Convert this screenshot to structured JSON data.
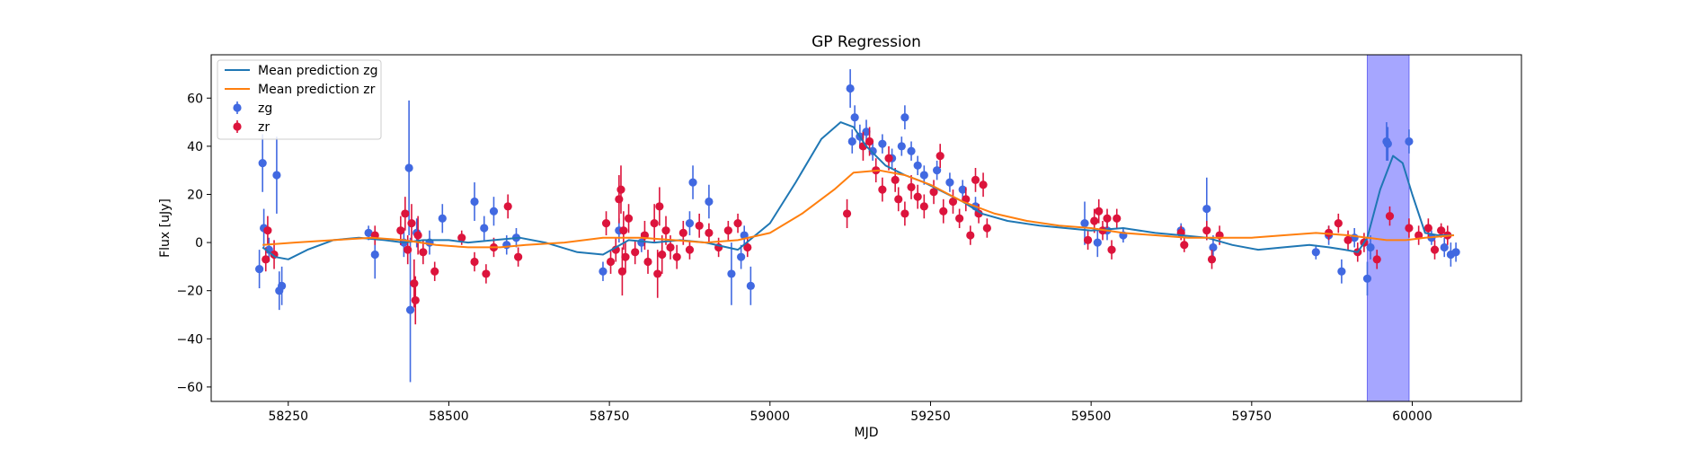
{
  "chart_data": {
    "type": "scatter",
    "title": "GP Regression",
    "xlabel": "MJD",
    "ylabel": "Flux [uJy]",
    "xlim": [
      58130,
      60170
    ],
    "ylim": [
      -66,
      78
    ],
    "xticks": [
      58250,
      58500,
      58750,
      59000,
      59250,
      59500,
      59750,
      60000
    ],
    "yticks": [
      -60,
      -40,
      -20,
      0,
      20,
      40,
      60
    ],
    "grid": false,
    "legend_position": "top-left",
    "legend": [
      "Mean prediction zg",
      "Mean prediction zr",
      "zg",
      "zr"
    ],
    "highlight_span": {
      "x_start": 59930,
      "x_end": 59995,
      "color": "#a6a6ff"
    },
    "series": [
      {
        "name": "Mean prediction zg",
        "kind": "line",
        "color": "#1f77b4",
        "x": [
          58210,
          58230,
          58250,
          58280,
          58320,
          58360,
          58400,
          58430,
          58460,
          58500,
          58530,
          58570,
          58610,
          58650,
          58700,
          58740,
          58780,
          58820,
          58860,
          58900,
          58950,
          59000,
          59040,
          59080,
          59110,
          59130,
          59150,
          59180,
          59210,
          59240,
          59270,
          59300,
          59330,
          59370,
          59420,
          59460,
          59500,
          59550,
          59600,
          59640,
          59680,
          59720,
          59760,
          59800,
          59840,
          59870,
          59895,
          59915,
          59930,
          59950,
          59970,
          59985,
          60000,
          60020,
          60040,
          60065
        ],
        "y": [
          -2,
          -6,
          -7,
          -3,
          1,
          2,
          1,
          0,
          1,
          1,
          0,
          1,
          2,
          0,
          -4,
          -5,
          1,
          0,
          1,
          0,
          -3,
          8,
          25,
          43,
          50,
          48,
          40,
          32,
          28,
          25,
          21,
          17,
          12,
          9,
          7,
          6,
          5,
          6,
          4,
          3,
          2,
          -1,
          -3,
          -2,
          -1,
          -2,
          -3,
          -4,
          2,
          22,
          36,
          33,
          20,
          4,
          3,
          3
        ]
      },
      {
        "name": "Mean prediction zr",
        "kind": "line",
        "color": "#ff7f0e",
        "x": [
          58210,
          58260,
          58320,
          58380,
          58430,
          58480,
          58530,
          58580,
          58620,
          58680,
          58740,
          58800,
          58850,
          58900,
          58950,
          59000,
          59050,
          59100,
          59130,
          59170,
          59210,
          59250,
          59300,
          59350,
          59400,
          59450,
          59500,
          59550,
          59600,
          59650,
          59700,
          59750,
          59800,
          59850,
          59900,
          59930,
          59960,
          59990,
          60020,
          60065
        ],
        "y": [
          -1,
          0,
          1,
          2,
          1,
          -1,
          -2,
          -2,
          -1,
          0,
          2,
          2,
          1,
          0,
          1,
          4,
          12,
          22,
          29,
          30,
          28,
          24,
          17,
          12,
          9,
          7,
          6,
          4,
          3,
          2,
          2,
          2,
          3,
          4,
          3,
          2,
          1,
          1,
          2,
          3
        ]
      },
      {
        "name": "zg",
        "kind": "errorbar",
        "color": "#4169e1",
        "points": [
          {
            "x": 58205,
            "y": -11,
            "e": 8
          },
          {
            "x": 58210,
            "y": 33,
            "e": 12
          },
          {
            "x": 58212,
            "y": 6,
            "e": 8
          },
          {
            "x": 58220,
            "y": -3,
            "e": 5
          },
          {
            "x": 58232,
            "y": 28,
            "e": 16
          },
          {
            "x": 58236,
            "y": -20,
            "e": 8
          },
          {
            "x": 58240,
            "y": -18,
            "e": 8
          },
          {
            "x": 58375,
            "y": 4,
            "e": 3
          },
          {
            "x": 58385,
            "y": -5,
            "e": 10
          },
          {
            "x": 58430,
            "y": 0,
            "e": 6
          },
          {
            "x": 58438,
            "y": 31,
            "e": 28
          },
          {
            "x": 58440,
            "y": -28,
            "e": 30
          },
          {
            "x": 58450,
            "y": 4,
            "e": 6
          },
          {
            "x": 58470,
            "y": 0,
            "e": 5
          },
          {
            "x": 58490,
            "y": 10,
            "e": 6
          },
          {
            "x": 58540,
            "y": 17,
            "e": 8
          },
          {
            "x": 58555,
            "y": 6,
            "e": 5
          },
          {
            "x": 58570,
            "y": 13,
            "e": 6
          },
          {
            "x": 58590,
            "y": -1,
            "e": 4
          },
          {
            "x": 58605,
            "y": 2,
            "e": 4
          },
          {
            "x": 58740,
            "y": -12,
            "e": 4
          },
          {
            "x": 58765,
            "y": 5,
            "e": 5
          },
          {
            "x": 58800,
            "y": 0,
            "e": 4
          },
          {
            "x": 58880,
            "y": 25,
            "e": 7
          },
          {
            "x": 58875,
            "y": 8,
            "e": 5
          },
          {
            "x": 58905,
            "y": 17,
            "e": 7
          },
          {
            "x": 58940,
            "y": -13,
            "e": 13
          },
          {
            "x": 58955,
            "y": -6,
            "e": 5
          },
          {
            "x": 58970,
            "y": -18,
            "e": 8
          },
          {
            "x": 58960,
            "y": 3,
            "e": 4
          },
          {
            "x": 59125,
            "y": 64,
            "e": 8
          },
          {
            "x": 59128,
            "y": 42,
            "e": 5
          },
          {
            "x": 59132,
            "y": 52,
            "e": 5
          },
          {
            "x": 59140,
            "y": 44,
            "e": 5
          },
          {
            "x": 59150,
            "y": 46,
            "e": 5
          },
          {
            "x": 59160,
            "y": 38,
            "e": 4
          },
          {
            "x": 59175,
            "y": 41,
            "e": 4
          },
          {
            "x": 59190,
            "y": 35,
            "e": 4
          },
          {
            "x": 59205,
            "y": 40,
            "e": 4
          },
          {
            "x": 59210,
            "y": 52,
            "e": 5
          },
          {
            "x": 59220,
            "y": 38,
            "e": 4
          },
          {
            "x": 59230,
            "y": 32,
            "e": 4
          },
          {
            "x": 59240,
            "y": 28,
            "e": 4
          },
          {
            "x": 59260,
            "y": 30,
            "e": 4
          },
          {
            "x": 59280,
            "y": 25,
            "e": 4
          },
          {
            "x": 59300,
            "y": 22,
            "e": 4
          },
          {
            "x": 59320,
            "y": 15,
            "e": 4
          },
          {
            "x": 59490,
            "y": 8,
            "e": 9
          },
          {
            "x": 59510,
            "y": 0,
            "e": 6
          },
          {
            "x": 59525,
            "y": 5,
            "e": 4
          },
          {
            "x": 59550,
            "y": 3,
            "e": 3
          },
          {
            "x": 59640,
            "y": 5,
            "e": 3
          },
          {
            "x": 59680,
            "y": 14,
            "e": 13
          },
          {
            "x": 59690,
            "y": -2,
            "e": 5
          },
          {
            "x": 59850,
            "y": -4,
            "e": 3
          },
          {
            "x": 59870,
            "y": 3,
            "e": 4
          },
          {
            "x": 59890,
            "y": -12,
            "e": 5
          },
          {
            "x": 59910,
            "y": 2,
            "e": 4
          },
          {
            "x": 59930,
            "y": -15,
            "e": 7
          },
          {
            "x": 59935,
            "y": -2,
            "e": 5
          },
          {
            "x": 59960,
            "y": 42,
            "e": 8
          },
          {
            "x": 59962,
            "y": 41,
            "e": 7
          },
          {
            "x": 59995,
            "y": 42,
            "e": 5
          },
          {
            "x": 60030,
            "y": 2,
            "e": 3
          },
          {
            "x": 60050,
            "y": -2,
            "e": 4
          },
          {
            "x": 60060,
            "y": -5,
            "e": 5
          },
          {
            "x": 60068,
            "y": -4,
            "e": 4
          }
        ]
      },
      {
        "name": "zr",
        "kind": "errorbar",
        "color": "#dc143c",
        "points": [
          {
            "x": 58215,
            "y": -7,
            "e": 5
          },
          {
            "x": 58218,
            "y": 5,
            "e": 6
          },
          {
            "x": 58228,
            "y": -5,
            "e": 6
          },
          {
            "x": 58385,
            "y": 3,
            "e": 4
          },
          {
            "x": 58425,
            "y": 5,
            "e": 6
          },
          {
            "x": 58432,
            "y": 12,
            "e": 7
          },
          {
            "x": 58436,
            "y": -3,
            "e": 6
          },
          {
            "x": 58442,
            "y": 8,
            "e": 8
          },
          {
            "x": 58446,
            "y": -17,
            "e": 10
          },
          {
            "x": 58448,
            "y": -24,
            "e": 10
          },
          {
            "x": 58452,
            "y": 3,
            "e": 8
          },
          {
            "x": 58460,
            "y": -4,
            "e": 5
          },
          {
            "x": 58478,
            "y": -12,
            "e": 4
          },
          {
            "x": 58520,
            "y": 2,
            "e": 3
          },
          {
            "x": 58540,
            "y": -8,
            "e": 4
          },
          {
            "x": 58558,
            "y": -13,
            "e": 4
          },
          {
            "x": 58570,
            "y": -2,
            "e": 4
          },
          {
            "x": 58592,
            "y": 15,
            "e": 5
          },
          {
            "x": 58608,
            "y": -6,
            "e": 4
          },
          {
            "x": 58745,
            "y": 8,
            "e": 5
          },
          {
            "x": 58752,
            "y": -8,
            "e": 5
          },
          {
            "x": 58760,
            "y": -3,
            "e": 5
          },
          {
            "x": 58765,
            "y": 18,
            "e": 10
          },
          {
            "x": 58768,
            "y": 22,
            "e": 10
          },
          {
            "x": 58770,
            "y": -12,
            "e": 10
          },
          {
            "x": 58772,
            "y": 5,
            "e": 8
          },
          {
            "x": 58775,
            "y": -6,
            "e": 6
          },
          {
            "x": 58780,
            "y": 10,
            "e": 6
          },
          {
            "x": 58790,
            "y": -4,
            "e": 5
          },
          {
            "x": 58805,
            "y": 3,
            "e": 6
          },
          {
            "x": 58810,
            "y": -8,
            "e": 5
          },
          {
            "x": 58820,
            "y": 8,
            "e": 8
          },
          {
            "x": 58825,
            "y": -13,
            "e": 10
          },
          {
            "x": 58828,
            "y": 15,
            "e": 8
          },
          {
            "x": 58832,
            "y": -5,
            "e": 8
          },
          {
            "x": 58838,
            "y": 5,
            "e": 6
          },
          {
            "x": 58845,
            "y": -2,
            "e": 5
          },
          {
            "x": 58855,
            "y": -6,
            "e": 5
          },
          {
            "x": 58865,
            "y": 4,
            "e": 5
          },
          {
            "x": 58875,
            "y": -3,
            "e": 4
          },
          {
            "x": 58890,
            "y": 7,
            "e": 5
          },
          {
            "x": 58905,
            "y": 4,
            "e": 4
          },
          {
            "x": 58920,
            "y": -2,
            "e": 4
          },
          {
            "x": 58935,
            "y": 5,
            "e": 4
          },
          {
            "x": 58950,
            "y": 8,
            "e": 4
          },
          {
            "x": 58965,
            "y": -2,
            "e": 4
          },
          {
            "x": 59120,
            "y": 12,
            "e": 6
          },
          {
            "x": 59145,
            "y": 40,
            "e": 6
          },
          {
            "x": 59155,
            "y": 42,
            "e": 6
          },
          {
            "x": 59165,
            "y": 30,
            "e": 5
          },
          {
            "x": 59175,
            "y": 22,
            "e": 5
          },
          {
            "x": 59185,
            "y": 35,
            "e": 5
          },
          {
            "x": 59195,
            "y": 26,
            "e": 5
          },
          {
            "x": 59200,
            "y": 18,
            "e": 5
          },
          {
            "x": 59210,
            "y": 12,
            "e": 5
          },
          {
            "x": 59220,
            "y": 23,
            "e": 5
          },
          {
            "x": 59230,
            "y": 19,
            "e": 5
          },
          {
            "x": 59240,
            "y": 15,
            "e": 5
          },
          {
            "x": 59255,
            "y": 21,
            "e": 5
          },
          {
            "x": 59265,
            "y": 36,
            "e": 5
          },
          {
            "x": 59270,
            "y": 13,
            "e": 5
          },
          {
            "x": 59285,
            "y": 17,
            "e": 5
          },
          {
            "x": 59295,
            "y": 10,
            "e": 4
          },
          {
            "x": 59305,
            "y": 18,
            "e": 5
          },
          {
            "x": 59312,
            "y": 3,
            "e": 4
          },
          {
            "x": 59320,
            "y": 26,
            "e": 5
          },
          {
            "x": 59325,
            "y": 12,
            "e": 4
          },
          {
            "x": 59332,
            "y": 24,
            "e": 5
          },
          {
            "x": 59338,
            "y": 6,
            "e": 4
          },
          {
            "x": 59495,
            "y": 1,
            "e": 4
          },
          {
            "x": 59505,
            "y": 9,
            "e": 5
          },
          {
            "x": 59512,
            "y": 13,
            "e": 5
          },
          {
            "x": 59518,
            "y": 5,
            "e": 4
          },
          {
            "x": 59525,
            "y": 10,
            "e": 4
          },
          {
            "x": 59532,
            "y": -3,
            "e": 4
          },
          {
            "x": 59540,
            "y": 10,
            "e": 4
          },
          {
            "x": 59640,
            "y": 4,
            "e": 3
          },
          {
            "x": 59645,
            "y": -1,
            "e": 3
          },
          {
            "x": 59680,
            "y": 5,
            "e": 4
          },
          {
            "x": 59688,
            "y": -7,
            "e": 4
          },
          {
            "x": 59700,
            "y": 3,
            "e": 4
          },
          {
            "x": 59870,
            "y": 4,
            "e": 3
          },
          {
            "x": 59885,
            "y": 8,
            "e": 4
          },
          {
            "x": 59900,
            "y": 1,
            "e": 4
          },
          {
            "x": 59915,
            "y": -4,
            "e": 4
          },
          {
            "x": 59925,
            "y": 0,
            "e": 4
          },
          {
            "x": 59945,
            "y": -7,
            "e": 4
          },
          {
            "x": 59965,
            "y": 11,
            "e": 4
          },
          {
            "x": 59995,
            "y": 6,
            "e": 4
          },
          {
            "x": 60010,
            "y": 3,
            "e": 4
          },
          {
            "x": 60025,
            "y": 6,
            "e": 4
          },
          {
            "x": 60035,
            "y": -3,
            "e": 4
          },
          {
            "x": 60045,
            "y": 5,
            "e": 3
          },
          {
            "x": 60055,
            "y": 3,
            "e": 4
          }
        ]
      }
    ]
  }
}
